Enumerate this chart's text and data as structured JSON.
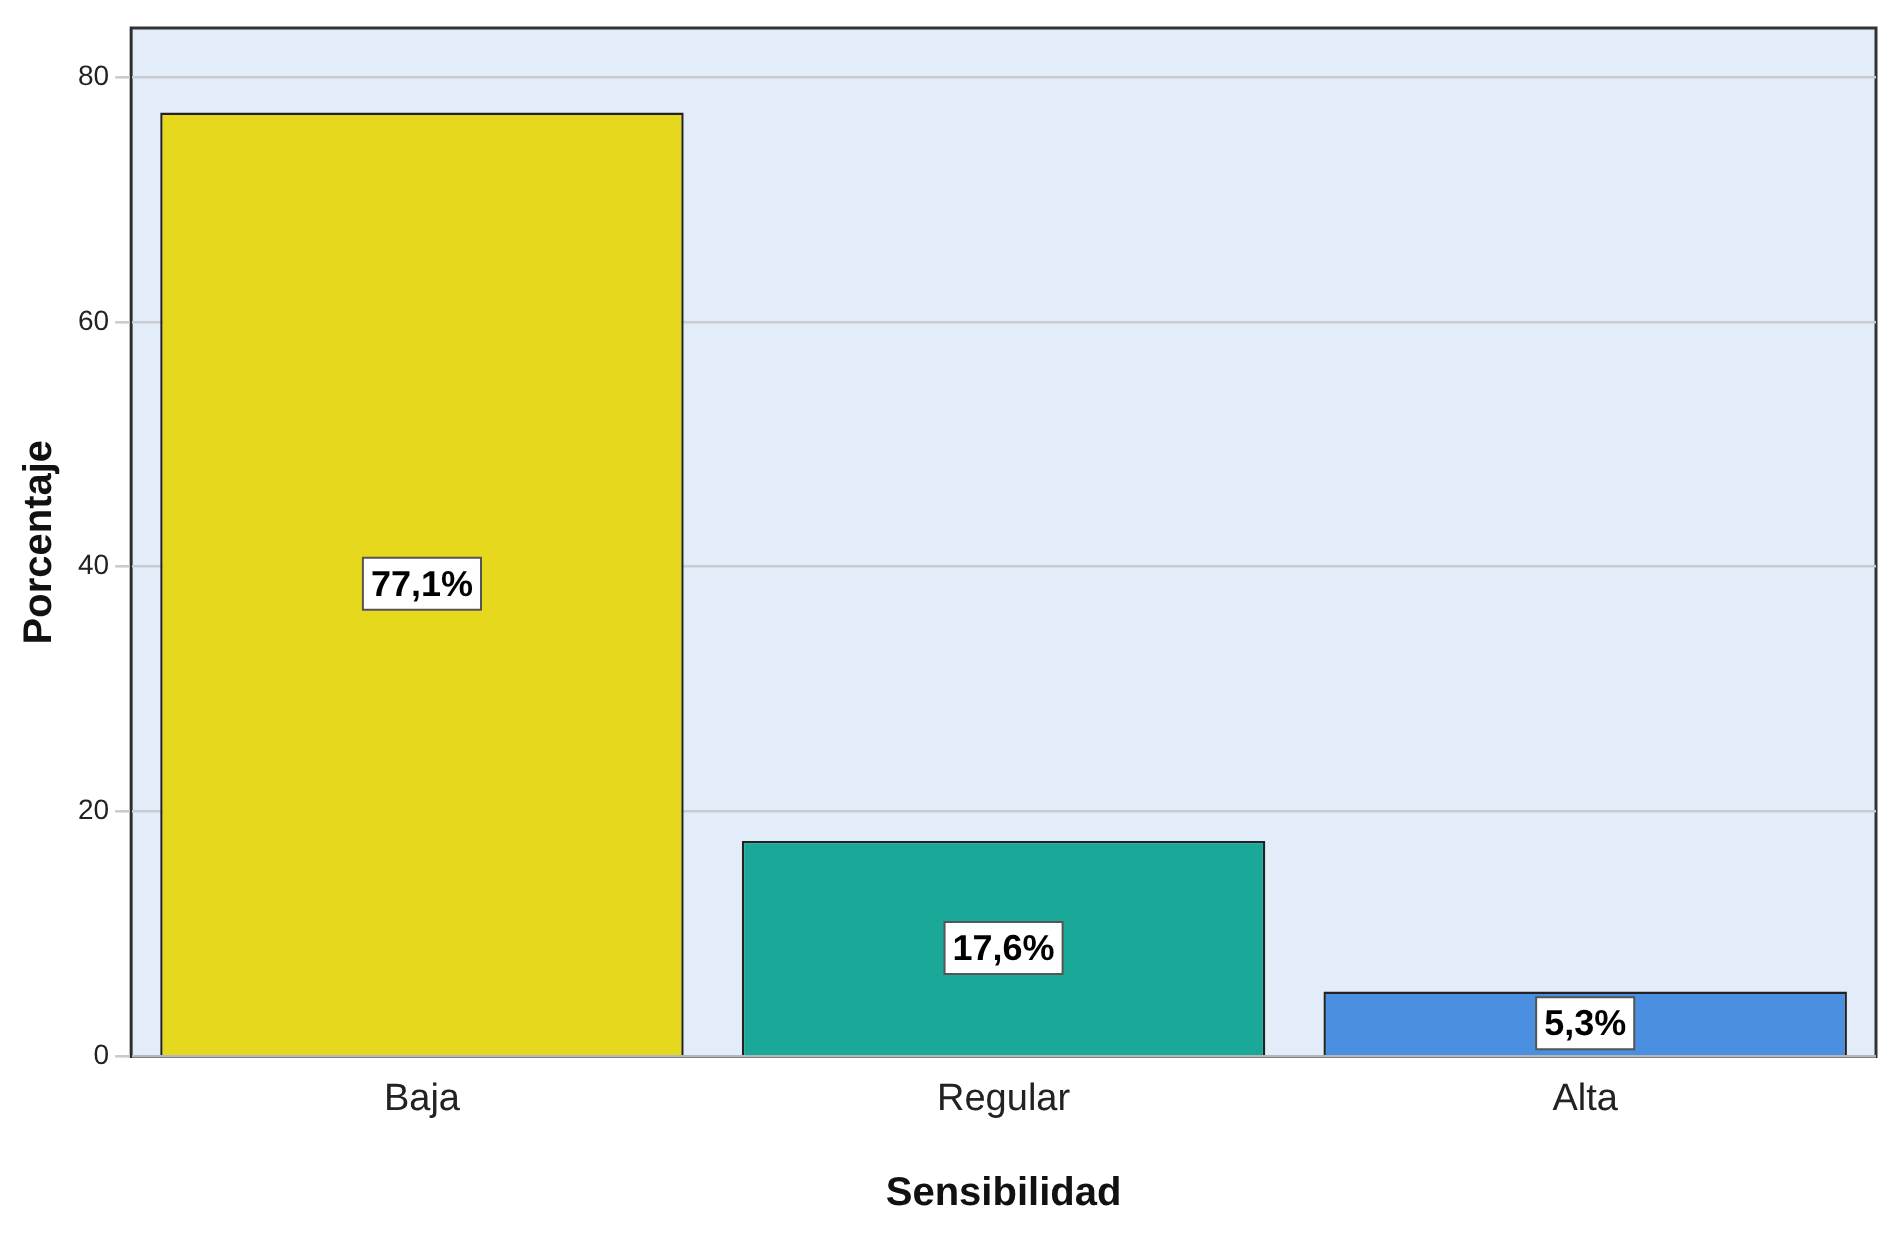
{
  "chart_data": {
    "type": "bar",
    "xlabel": "Sensibilidad",
    "ylabel": "Porcentaje",
    "categories": [
      "Baja",
      "Regular",
      "Alta"
    ],
    "values": [
      77.1,
      17.6,
      5.3
    ],
    "colors": [
      "#e6d81c",
      "#1aa898",
      "#4a8fe0"
    ],
    "value_labels": [
      "77,1%",
      "17,6%",
      "5,3%"
    ],
    "ylim": [
      0,
      84
    ],
    "yticks": [
      0,
      20,
      40,
      60,
      80
    ],
    "grid": "y",
    "legend": false
  }
}
